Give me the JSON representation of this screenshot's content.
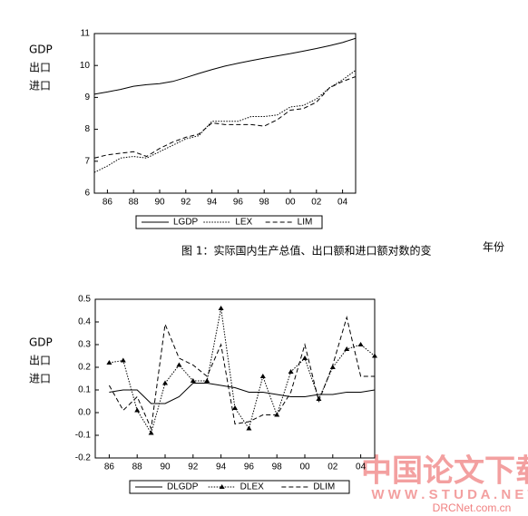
{
  "chart_data": [
    {
      "type": "line",
      "ylabel_lines": [
        "GDP",
        "出口",
        "进口"
      ],
      "x": [
        1985,
        1986,
        1987,
        1988,
        1989,
        1990,
        1991,
        1992,
        1993,
        1994,
        1995,
        1996,
        1997,
        1998,
        1999,
        2000,
        2001,
        2002,
        2003,
        2004,
        2005
      ],
      "series": [
        {
          "name": "LGDP",
          "color": "#000000",
          "style": "solid",
          "values": [
            9.1,
            9.17,
            9.25,
            9.35,
            9.4,
            9.43,
            9.5,
            9.62,
            9.75,
            9.87,
            9.98,
            10.07,
            10.15,
            10.23,
            10.3,
            10.37,
            10.45,
            10.53,
            10.62,
            10.72,
            10.85
          ]
        },
        {
          "name": "LEX",
          "color": "#000000",
          "style": "dotted",
          "values": [
            6.65,
            6.85,
            7.1,
            7.15,
            7.1,
            7.3,
            7.5,
            7.7,
            7.8,
            8.25,
            8.25,
            8.25,
            8.4,
            8.4,
            8.45,
            8.7,
            8.75,
            8.95,
            9.3,
            9.55,
            9.85
          ]
        },
        {
          "name": "LIM",
          "color": "#000000",
          "style": "dashed",
          "values": [
            7.1,
            7.2,
            7.25,
            7.3,
            7.15,
            7.4,
            7.6,
            7.75,
            7.85,
            8.2,
            8.15,
            8.15,
            8.15,
            8.1,
            8.3,
            8.6,
            8.65,
            8.85,
            9.3,
            9.5,
            9.65
          ]
        }
      ],
      "xlim": [
        1985,
        2005
      ],
      "ylim": [
        6,
        11
      ],
      "xticks": [
        {
          "value": 1986,
          "label": "86"
        },
        {
          "value": 1988,
          "label": "88"
        },
        {
          "value": 1990,
          "label": "90"
        },
        {
          "value": 1992,
          "label": "92"
        },
        {
          "value": 1994,
          "label": "94"
        },
        {
          "value": 1996,
          "label": "96"
        },
        {
          "value": 1998,
          "label": "98"
        },
        {
          "value": 2000,
          "label": "00"
        },
        {
          "value": 2002,
          "label": "02"
        },
        {
          "value": 2004,
          "label": "04"
        }
      ],
      "yticks": [
        6,
        7,
        8,
        9,
        10,
        11
      ],
      "caption": "图 1：实际国内生产总值、出口额和进口额对数的变",
      "caption_tail": "年份"
    },
    {
      "type": "line",
      "ylabel_lines": [
        "GDP",
        "出口",
        "进口"
      ],
      "x": [
        1986,
        1987,
        1988,
        1989,
        1990,
        1991,
        1992,
        1993,
        1994,
        1995,
        1996,
        1997,
        1998,
        1999,
        2000,
        2001,
        2002,
        2003,
        2004,
        2005
      ],
      "series": [
        {
          "name": "DLGDP",
          "color": "#000000",
          "style": "solid",
          "values": [
            0.09,
            0.1,
            0.1,
            0.04,
            0.04,
            0.07,
            0.13,
            0.13,
            0.12,
            0.11,
            0.09,
            0.09,
            0.08,
            0.07,
            0.07,
            0.08,
            0.08,
            0.09,
            0.09,
            0.1
          ]
        },
        {
          "name": "DLEX",
          "color": "#000000",
          "style": "dotted",
          "marker": "triangle",
          "values": [
            0.22,
            0.23,
            0.01,
            -0.09,
            0.13,
            0.21,
            0.14,
            0.14,
            0.46,
            0.02,
            -0.07,
            0.16,
            -0.01,
            0.18,
            0.24,
            0.06,
            0.2,
            0.28,
            0.3,
            0.25
          ]
        },
        {
          "name": "DLIM",
          "color": "#000000",
          "style": "dashed",
          "values": [
            0.12,
            0.01,
            0.07,
            -0.07,
            0.39,
            0.24,
            0.21,
            0.16,
            0.3,
            -0.05,
            -0.04,
            -0.01,
            -0.01,
            0.09,
            0.3,
            0.05,
            0.21,
            0.42,
            0.16,
            0.16
          ]
        }
      ],
      "xlim": [
        1985,
        2005
      ],
      "ylim": [
        -0.2,
        0.5
      ],
      "xticks": [
        {
          "value": 1986,
          "label": "86"
        },
        {
          "value": 1988,
          "label": "88"
        },
        {
          "value": 1990,
          "label": "90"
        },
        {
          "value": 1992,
          "label": "92"
        },
        {
          "value": 1994,
          "label": "94"
        },
        {
          "value": 1996,
          "label": "96"
        },
        {
          "value": 1998,
          "label": "98"
        },
        {
          "value": 2000,
          "label": "00"
        },
        {
          "value": 2002,
          "label": "02"
        },
        {
          "value": 2004,
          "label": "04"
        }
      ],
      "yticks": [
        -0.2,
        -0.1,
        {
          "value": 0,
          "label": "0.0"
        },
        0.1,
        0.2,
        0.3,
        0.4,
        0.5
      ]
    }
  ],
  "watermark": {
    "title": "中国论文下载",
    "site": "W W W . S T U D A . N E T",
    "domain": "DRCNet.com.cn"
  }
}
